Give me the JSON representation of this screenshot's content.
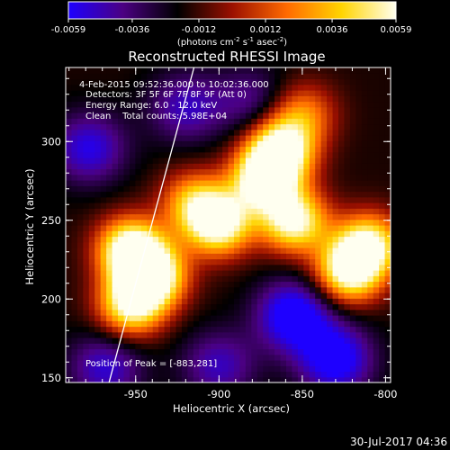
{
  "colorbar": {
    "tick_labels": [
      "-0.0059",
      "-0.0036",
      "-0.0012",
      "0.0012",
      "0.0036",
      "0.0059"
    ],
    "tick_values": [
      -0.0059,
      -0.0036,
      -0.0012,
      0.0012,
      0.0036,
      0.0059
    ],
    "range": [
      -0.0059,
      0.0059
    ],
    "units_parts": [
      "(photons cm",
      "-2",
      " s",
      "-1",
      " asec",
      "-2",
      ")"
    ],
    "colormap": [
      "#1e00ff",
      "#4b0082",
      "#000000",
      "#9b1000",
      "#ff6a00",
      "#ffd400",
      "#fffff0"
    ]
  },
  "chart_data": {
    "type": "heatmap",
    "title": "Reconstructed RHESSI Image",
    "xlabel": "Heliocentric X (arcsec)",
    "ylabel": "Heliocentric Y (arcsec)",
    "xlim": [
      -992,
      -797
    ],
    "ylim": [
      147,
      347
    ],
    "x_ticks": [
      -950,
      -900,
      -850,
      -800
    ],
    "x_tick_labels": [
      "-950",
      "-900",
      "-850",
      "-800"
    ],
    "y_ticks": [
      150,
      200,
      250,
      300
    ],
    "y_tick_labels": [
      "150",
      "200",
      "250",
      "300"
    ],
    "info_lines": [
      "4-Feb-2015 09:52:36.000 to 10:02:36.000",
      "Detectors: 3F 5F 6F 7F 8F 9F (Att 0)",
      "Energy Range: 6.0 - 12.0 keV",
      "Clean    Total counts: 5.98E+04"
    ],
    "peak_label": "Position of Peak = [-883,281]",
    "peak_position": [
      -883,
      281
    ],
    "limb_line": [
      [
        -966,
        147
      ],
      [
        -915,
        347
      ]
    ],
    "sources": [
      {
        "x": -953,
        "y": 232,
        "peak": 0.96
      },
      {
        "x": -940,
        "y": 215,
        "peak": 0.98
      },
      {
        "x": -953,
        "y": 196,
        "peak": 0.8
      },
      {
        "x": -900,
        "y": 248,
        "peak": 0.92
      },
      {
        "x": -915,
        "y": 262,
        "peak": 0.55
      },
      {
        "x": -863,
        "y": 295,
        "peak": 0.95
      },
      {
        "x": -873,
        "y": 276,
        "peak": 0.93
      },
      {
        "x": -855,
        "y": 250,
        "peak": 0.88
      },
      {
        "x": -822,
        "y": 218,
        "peak": 0.9
      },
      {
        "x": -810,
        "y": 235,
        "peak": 0.8
      },
      {
        "x": -850,
        "y": 318,
        "peak": 0.45
      }
    ],
    "sink": [
      {
        "x": -978,
        "y": 296,
        "depth": 0.55
      },
      {
        "x": -968,
        "y": 157,
        "depth": 0.5
      },
      {
        "x": -855,
        "y": 190,
        "depth": 0.75
      },
      {
        "x": -830,
        "y": 162,
        "depth": 0.7
      },
      {
        "x": -900,
        "y": 158,
        "depth": 0.45
      },
      {
        "x": -920,
        "y": 322,
        "depth": 0.45
      },
      {
        "x": -880,
        "y": 326,
        "depth": 0.35
      }
    ]
  },
  "footer": {
    "timestamp": "30-Jul-2017 04:36"
  }
}
